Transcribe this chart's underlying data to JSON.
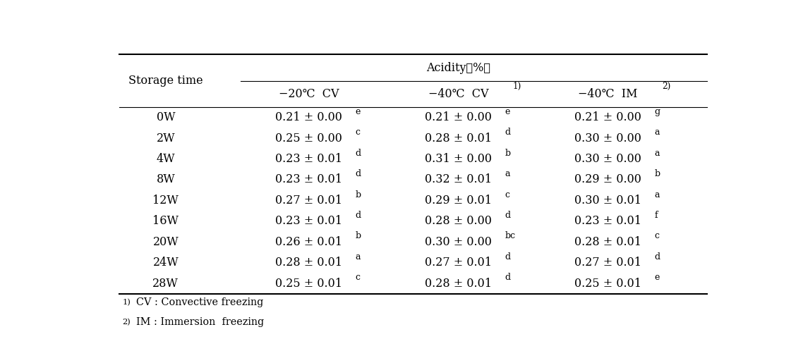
{
  "storage_times": [
    "0W",
    "2W",
    "4W",
    "8W",
    "12W",
    "16W",
    "20W",
    "24W",
    "28W"
  ],
  "col1_main": [
    "0.21 ± 0.00",
    "0.25 ± 0.00",
    "0.23 ± 0.01",
    "0.23 ± 0.01",
    "0.27 ± 0.01",
    "0.23 ± 0.01",
    "0.26 ± 0.01",
    "0.28 ± 0.01",
    "0.25 ± 0.01"
  ],
  "col1_sup": [
    "e",
    "c",
    "d",
    "d",
    "b",
    "d",
    "b",
    "a",
    "c"
  ],
  "col2_main": [
    "0.21 ± 0.00",
    "0.28 ± 0.01",
    "0.31 ± 0.00",
    "0.32 ± 0.01",
    "0.29 ± 0.01",
    "0.28 ± 0.00",
    "0.30 ± 0.00",
    "0.27 ± 0.01",
    "0.28 ± 0.01"
  ],
  "col2_sup": [
    "e",
    "d",
    "b",
    "a",
    "c",
    "d",
    "bc",
    "d",
    "d"
  ],
  "col3_main": [
    "0.21 ± 0.00",
    "0.30 ± 0.00",
    "0.30 ± 0.00",
    "0.29 ± 0.00",
    "0.30 ± 0.01",
    "0.23 ± 0.01",
    "0.28 ± 0.01",
    "0.27 ± 0.01",
    "0.25 ± 0.01"
  ],
  "col3_sup": [
    "g",
    "a",
    "a",
    "b",
    "a",
    "f",
    "c",
    "d",
    "e"
  ],
  "bg_color": "#ffffff",
  "text_color": "#000000",
  "fontsize": 11.5
}
